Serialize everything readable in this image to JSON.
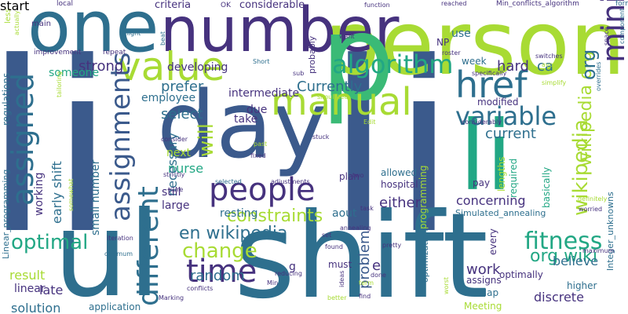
{
  "image": {
    "type": "word cloud",
    "background": "#ffffff",
    "palette": "viridis"
  },
  "words": [
    {
      "text": "li",
      "color": "#3b5a8c"
    },
    {
      "text": "day",
      "color": "#3b5a8c"
    },
    {
      "text": "li",
      "color": "#3b5a8c"
    },
    {
      "text": "ul",
      "color": "#2e6f8e"
    },
    {
      "text": "shift",
      "color": "#2e6f8e"
    },
    {
      "text": "li",
      "color": "#22a784"
    },
    {
      "text": "person",
      "color": "#a8db34"
    },
    {
      "text": "one",
      "color": "#2e6f8e"
    },
    {
      "text": "number",
      "color": "#46327e"
    },
    {
      "text": "p",
      "color": "#3aba76"
    },
    {
      "text": "value",
      "color": "#a8db34"
    },
    {
      "text": "manual",
      "color": "#a8db34"
    },
    {
      "text": "href",
      "color": "#2e6f8e"
    },
    {
      "text": "people",
      "color": "#46327e"
    },
    {
      "text": "assigned",
      "color": "#2e6f8e"
    },
    {
      "text": "different",
      "color": "#2e6f8e"
    },
    {
      "text": "time",
      "color": "#46327e"
    },
    {
      "text": "minimum",
      "color": "#46327e"
    },
    {
      "text": "algorithm",
      "color": "#22a784"
    },
    {
      "text": "variable",
      "color": "#2e6f8e"
    },
    {
      "text": "assignments",
      "color": "#3b5a8c"
    },
    {
      "text": "fitness",
      "color": "#22a784"
    },
    {
      "text": "optimal",
      "color": "#22a784"
    },
    {
      "text": "change",
      "color": "#a8db34"
    },
    {
      "text": "constraints",
      "color": "#a8db34"
    },
    {
      "text": "wikipedia",
      "color": "#a8db34"
    },
    {
      "text": "wikipedia org",
      "color": "#a8db34"
    },
    {
      "text": "en wikipedia",
      "color": "#2e6f8e"
    },
    {
      "text": "org wiki",
      "color": "#22a784"
    },
    {
      "text": "org",
      "color": "#2e6f8e"
    },
    {
      "text": "will",
      "color": "#a8db34"
    },
    {
      "text": "strong",
      "color": "#46327e"
    },
    {
      "text": "hard",
      "color": "#46327e"
    },
    {
      "text": "ca",
      "color": "#2e6f8e"
    },
    {
      "text": "Currently",
      "color": "#2e6f8e"
    },
    {
      "text": "prefer",
      "color": "#2e6f8e"
    },
    {
      "text": "select",
      "color": "#2e6f8e"
    },
    {
      "text": "current",
      "color": "#2e6f8e"
    },
    {
      "text": "concerning",
      "color": "#46327e"
    },
    {
      "text": "either",
      "color": "#46327e"
    },
    {
      "text": "random",
      "color": "#2e6f8e"
    },
    {
      "text": "work",
      "color": "#46327e"
    },
    {
      "text": "believe",
      "color": "#2e6f8e"
    },
    {
      "text": "solution",
      "color": "#2e6f8e"
    },
    {
      "text": "problem",
      "color": "#3b5a8c"
    },
    {
      "text": "late",
      "color": "#46327e"
    },
    {
      "text": "result",
      "color": "#a8db34"
    },
    {
      "text": "nurse",
      "color": "#22a784"
    },
    {
      "text": "early shift",
      "color": "#2e6f8e"
    },
    {
      "text": "small number",
      "color": "#2e6f8e"
    },
    {
      "text": "working",
      "color": "#46327e"
    },
    {
      "text": "necessary",
      "color": "#2e6f8e"
    },
    {
      "text": "next",
      "color": "#a8db34"
    },
    {
      "text": "still",
      "color": "#46327e"
    },
    {
      "text": "large",
      "color": "#46327e"
    },
    {
      "text": "resting",
      "color": "#2e6f8e"
    },
    {
      "text": "aout",
      "color": "#2e6f8e"
    },
    {
      "text": "intermediate",
      "color": "#46327e"
    },
    {
      "text": "due",
      "color": "#46327e"
    },
    {
      "text": "take",
      "color": "#46327e"
    },
    {
      "text": "employee",
      "color": "#2e6f8e"
    },
    {
      "text": "someone",
      "color": "#22a784"
    },
    {
      "text": "developing",
      "color": "#46327e"
    },
    {
      "text": "criteria",
      "color": "#46327e"
    },
    {
      "text": "considerable",
      "color": "#46327e"
    },
    {
      "text": "use",
      "color": "#2e6f8e"
    },
    {
      "text": "week",
      "color": "#2e6f8e"
    },
    {
      "text": "NP",
      "color": "#46327e"
    },
    {
      "text": "modified",
      "color": "#46327e"
    },
    {
      "text": "pay",
      "color": "#46327e"
    },
    {
      "text": "plan",
      "color": "#46327e"
    },
    {
      "text": "allowed",
      "color": "#2e6f8e"
    },
    {
      "text": "hospital",
      "color": "#46327e"
    },
    {
      "text": "programming",
      "color": "#a8db34"
    },
    {
      "text": "lengths",
      "color": "#a8db34"
    },
    {
      "text": "required",
      "color": "#22a784"
    },
    {
      "text": "basically",
      "color": "#22a784"
    },
    {
      "text": "Simulated_annealing",
      "color": "#2e6f8e"
    },
    {
      "text": "must",
      "color": "#46327e"
    },
    {
      "text": "optimally",
      "color": "#46327e"
    },
    {
      "text": "assigns",
      "color": "#46327e"
    },
    {
      "text": "overlap",
      "color": "#2e6f8e"
    },
    {
      "text": "discrete",
      "color": "#46327e"
    },
    {
      "text": "higher",
      "color": "#2e6f8e"
    },
    {
      "text": "application",
      "color": "#2e6f8e"
    },
    {
      "text": "Meeting",
      "color": "#a8db34"
    },
    {
      "text": "linear",
      "color": "#46327e"
    },
    {
      "text": "Integer_unknowns",
      "color": "#2e6f8e"
    },
    {
      "text": "every",
      "color": "#46327e"
    },
    {
      "text": "optimization",
      "color": "#2e6f8e"
    },
    {
      "text": "Linear_programming",
      "color": "#2e6f8e"
    },
    {
      "text": "regulations",
      "color": "#2e6f8e"
    },
    {
      "text": "less",
      "color": "#a8db34"
    },
    {
      "text": "main",
      "color": "#46327e"
    },
    {
      "text": "improvement",
      "color": "#46327e"
    },
    {
      "text": "OK",
      "color": "#46327e"
    },
    {
      "text": "local",
      "color": "#46327e"
    },
    {
      "text": "function",
      "color": "#46327e"
    },
    {
      "text": "reached",
      "color": "#46327e"
    },
    {
      "text": "Min_conflicts_algorithm",
      "color": "#46327e"
    },
    {
      "text": "form",
      "color": "#2e6f8e"
    },
    {
      "text": "probably",
      "color": "#46327e"
    },
    {
      "text": "sub",
      "color": "#46327e"
    },
    {
      "text": "repeat",
      "color": "#46327e"
    },
    {
      "text": "might",
      "color": "#2e6f8e"
    },
    {
      "text": "beat",
      "color": "#2e6f8e"
    },
    {
      "text": "Short",
      "color": "#2e6f8e"
    },
    {
      "text": "roster",
      "color": "#46327e"
    },
    {
      "text": "want",
      "color": "#46327e"
    },
    {
      "text": "specifically",
      "color": "#46327e"
    },
    {
      "text": "switches",
      "color": "#46327e"
    },
    {
      "text": "simplify",
      "color": "#a8db34"
    },
    {
      "text": "component",
      "color": "#2e6f8e"
    },
    {
      "text": "space",
      "color": "#46327e"
    },
    {
      "text": "overrides",
      "color": "#2e6f8e"
    },
    {
      "text": "avoid",
      "color": "#a8db34"
    },
    {
      "text": "actually",
      "color": "#a8db34"
    },
    {
      "text": "tailoring",
      "color": "#a8db34"
    },
    {
      "text": "simulated",
      "color": "#a8db34"
    },
    {
      "text": "stuck",
      "color": "#46327e"
    },
    {
      "text": "Edit",
      "color": "#a8db34"
    },
    {
      "text": "considerably",
      "color": "#46327e"
    },
    {
      "text": "consider",
      "color": "#46327e"
    },
    {
      "text": "strictly",
      "color": "#46327e"
    },
    {
      "text": "past",
      "color": "#a8db34"
    },
    {
      "text": "fixed",
      "color": "#46327e"
    },
    {
      "text": "adjustments",
      "color": "#46327e"
    },
    {
      "text": "two",
      "color": "#46327e"
    },
    {
      "text": "selected",
      "color": "#2e6f8e"
    },
    {
      "text": "sure",
      "color": "#46327e"
    },
    {
      "text": "somewhat",
      "color": "#a8db34"
    },
    {
      "text": "task",
      "color": "#46327e"
    },
    {
      "text": "annealing",
      "color": "#46327e"
    },
    {
      "text": "set",
      "color": "#46327e"
    },
    {
      "text": "found",
      "color": "#46327e"
    },
    {
      "text": "pretty",
      "color": "#46327e"
    },
    {
      "text": "e",
      "color": "#46327e"
    },
    {
      "text": "g",
      "color": "#46327e"
    },
    {
      "text": "reducing",
      "color": "#46327e"
    },
    {
      "text": "Min",
      "color": "#46327e"
    },
    {
      "text": "conflicts",
      "color": "#46327e"
    },
    {
      "text": "Marking",
      "color": "#46327e"
    },
    {
      "text": "ideas",
      "color": "#46327e"
    },
    {
      "text": "better",
      "color": "#a8db34"
    },
    {
      "text": "term",
      "color": "#a8db34"
    },
    {
      "text": "done",
      "color": "#46327e"
    },
    {
      "text": "find",
      "color": "#46327e"
    },
    {
      "text": "worst",
      "color": "#a8db34"
    },
    {
      "text": "optimum",
      "color": "#2e6f8e"
    },
    {
      "text": "iteration",
      "color": "#46327e"
    },
    {
      "text": "definitely",
      "color": "#a8db34"
    },
    {
      "text": "worried",
      "color": "#46327e"
    },
    {
      "text": "maximum",
      "color": "#46327e"
    },
    {
      "text": "start",
      "color": "#46327e"
    }
  ]
}
